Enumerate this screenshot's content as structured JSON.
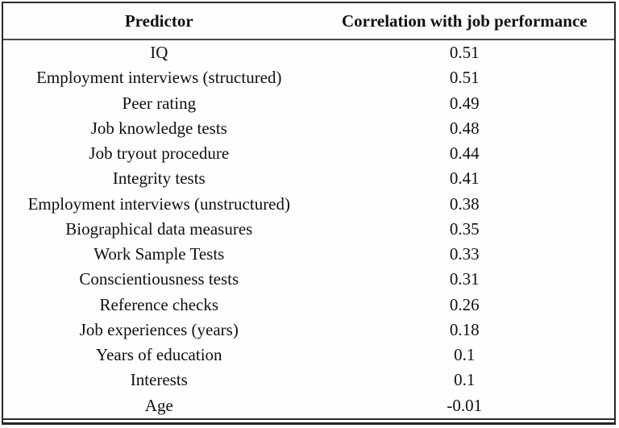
{
  "table": {
    "columns": [
      {
        "key": "predictor",
        "label": "Predictor"
      },
      {
        "key": "correlation",
        "label": "Correlation with job performance"
      }
    ],
    "rows": [
      {
        "predictor": "IQ",
        "correlation": "0.51"
      },
      {
        "predictor": "Employment interviews (structured)",
        "correlation": "0.51"
      },
      {
        "predictor": "Peer rating",
        "correlation": "0.49"
      },
      {
        "predictor": "Job knowledge tests",
        "correlation": "0.48"
      },
      {
        "predictor": "Job tryout procedure",
        "correlation": "0.44"
      },
      {
        "predictor": "Integrity tests",
        "correlation": "0.41"
      },
      {
        "predictor": "Employment interviews (unstructured)",
        "correlation": "0.38"
      },
      {
        "predictor": "Biographical data measures",
        "correlation": "0.35"
      },
      {
        "predictor": "Work Sample Tests",
        "correlation": "0.33"
      },
      {
        "predictor": "Conscientiousness tests",
        "correlation": "0.31"
      },
      {
        "predictor": "Reference checks",
        "correlation": "0.26"
      },
      {
        "predictor": "Job experiences (years)",
        "correlation": "0.18"
      },
      {
        "predictor": "Years of education",
        "correlation": "0.1"
      },
      {
        "predictor": "Interests",
        "correlation": "0.1"
      },
      {
        "predictor": "Age",
        "correlation": "-0.01"
      }
    ],
    "colors": {
      "text": "#0a0a0a",
      "border": "#2a2a2a",
      "header_separator": "#4a4a4a",
      "background": "#fefefe"
    }
  }
}
